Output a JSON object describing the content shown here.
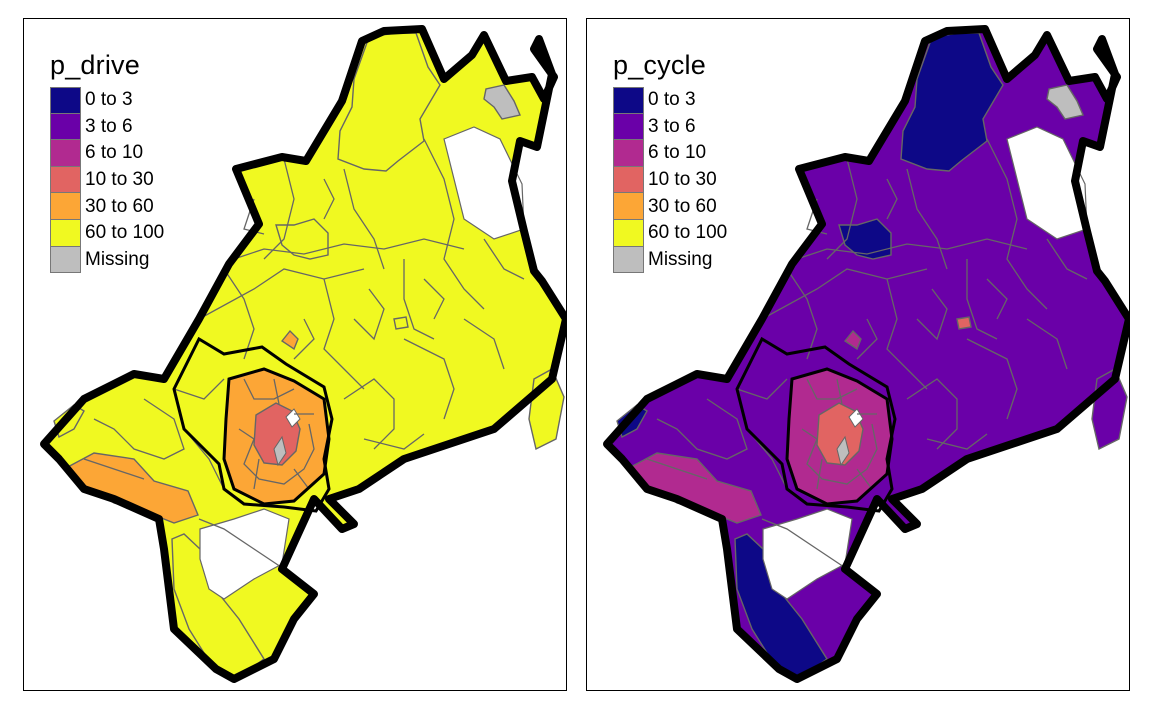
{
  "palette": {
    "0 to 3": "#0d0887",
    "3 to 6": "#6a00a8",
    "6 to 10": "#b12a90",
    "10 to 30": "#e16462",
    "30 to 60": "#fca636",
    "60 to 100": "#f0f921",
    "Missing": "#bebebe"
  },
  "maps": [
    {
      "variable": "p_drive",
      "legend": {
        "title": "p_drive",
        "items": [
          "0 to 3",
          "3 to 6",
          "6 to 10",
          "10 to 30",
          "30 to 60",
          "60 to 100",
          "Missing"
        ]
      },
      "zones": {
        "base": "60 to 100",
        "north_patch": "60 to 100",
        "missing_ne": "Missing",
        "east_blob": "60 to 100",
        "sw_band": "30 to 60",
        "south_lobe": "60 to 100",
        "west_lobe": "60 to 100",
        "center_ring": "30 to 60",
        "center_core": "10 to 30",
        "center_missing": "Missing",
        "north_spot": "30 to 60",
        "east_spot": "60 to 100"
      }
    },
    {
      "variable": "p_cycle",
      "legend": {
        "title": "p_cycle",
        "items": [
          "0 to 3",
          "3 to 6",
          "6 to 10",
          "10 to 30",
          "30 to 60",
          "60 to 100",
          "Missing"
        ]
      },
      "zones": {
        "base": "3 to 6",
        "north_patch": "0 to 3",
        "missing_ne": "Missing",
        "east_blob": "0 to 3",
        "sw_band": "6 to 10",
        "south_lobe": "0 to 3",
        "west_lobe": "0 to 3",
        "center_ring": "6 to 10",
        "center_core": "10 to 30",
        "center_missing": "Missing",
        "north_spot": "6 to 10",
        "east_spot": "10 to 30"
      }
    }
  ]
}
